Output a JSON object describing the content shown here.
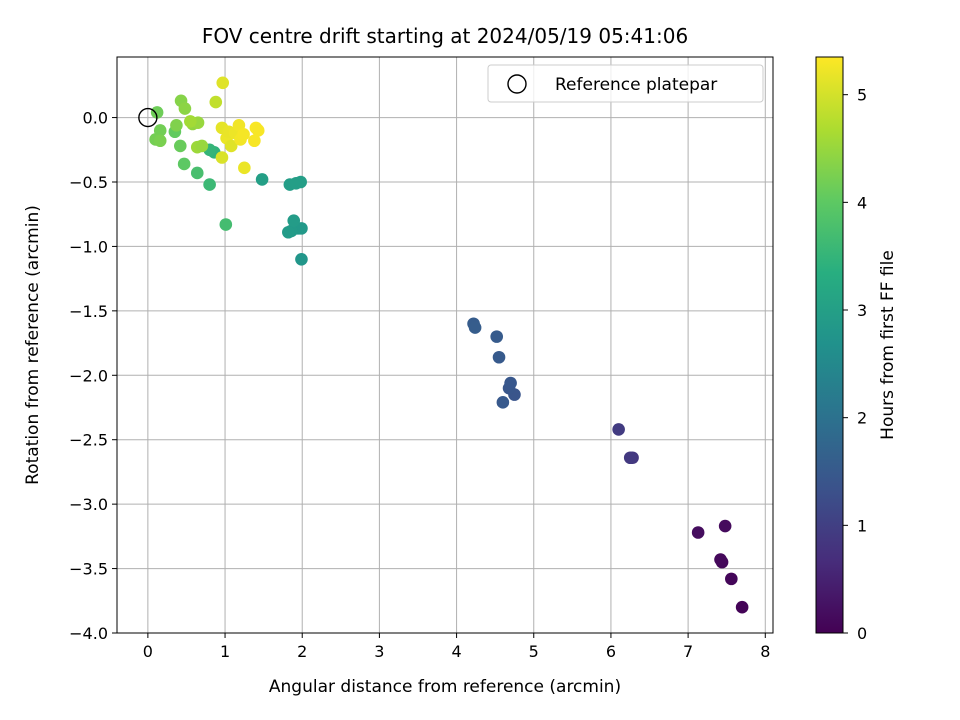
{
  "chart_data": {
    "type": "scatter",
    "title": "FOV centre drift starting at 2024/05/19 05:41:06",
    "xlabel": "Angular distance from reference (arcmin)",
    "ylabel": "Rotation from reference (arcmin)",
    "xlim": [
      -0.4,
      8.1
    ],
    "ylim": [
      -4.0,
      0.47
    ],
    "xticks": [
      0,
      1,
      2,
      3,
      4,
      5,
      6,
      7,
      8
    ],
    "yticks": [
      0.0,
      -0.5,
      -1.0,
      -1.5,
      -2.0,
      -2.5,
      -3.0,
      -3.5,
      -4.0
    ],
    "xtick_labels": [
      "0",
      "1",
      "2",
      "3",
      "4",
      "5",
      "6",
      "7",
      "8"
    ],
    "ytick_labels": [
      "0.0",
      "−0.5",
      "−1.0",
      "−1.5",
      "−2.0",
      "−2.5",
      "−3.0",
      "−3.5",
      "−4.0"
    ],
    "grid": true,
    "legend": {
      "placement": "top-right",
      "entries": [
        "Reference platepar"
      ]
    },
    "reference_point": {
      "x": 0.0,
      "y": 0.0
    },
    "colorbar": {
      "label": "Hours from first FF file",
      "min": 0,
      "max": 5.35,
      "ticks": [
        0,
        1,
        2,
        3,
        4,
        5
      ],
      "tick_labels": [
        "0",
        "1",
        "2",
        "3",
        "4",
        "5"
      ],
      "colormap": "viridis"
    },
    "points": [
      {
        "x": 7.7,
        "y": -3.8,
        "t": 0.05
      },
      {
        "x": 7.56,
        "y": -3.58,
        "t": 0.08
      },
      {
        "x": 7.44,
        "y": -3.45,
        "t": 0.1
      },
      {
        "x": 7.42,
        "y": -3.43,
        "t": 0.12
      },
      {
        "x": 7.48,
        "y": -3.17,
        "t": 0.15
      },
      {
        "x": 7.13,
        "y": -3.22,
        "t": 0.18
      },
      {
        "x": 6.28,
        "y": -2.64,
        "t": 0.85
      },
      {
        "x": 6.25,
        "y": -2.64,
        "t": 0.88
      },
      {
        "x": 6.1,
        "y": -2.42,
        "t": 0.92
      },
      {
        "x": 4.75,
        "y": -2.15,
        "t": 1.4
      },
      {
        "x": 4.68,
        "y": -2.1,
        "t": 1.42
      },
      {
        "x": 4.7,
        "y": -2.06,
        "t": 1.45
      },
      {
        "x": 4.6,
        "y": -2.21,
        "t": 1.48
      },
      {
        "x": 4.55,
        "y": -1.86,
        "t": 1.5
      },
      {
        "x": 4.52,
        "y": -1.7,
        "t": 1.52
      },
      {
        "x": 4.22,
        "y": -1.6,
        "t": 1.55
      },
      {
        "x": 4.24,
        "y": -1.63,
        "t": 1.57
      },
      {
        "x": 1.99,
        "y": -1.1,
        "t": 2.8
      },
      {
        "x": 1.95,
        "y": -0.86,
        "t": 2.85
      },
      {
        "x": 1.99,
        "y": -0.86,
        "t": 2.86
      },
      {
        "x": 1.86,
        "y": -0.88,
        "t": 2.88
      },
      {
        "x": 1.82,
        "y": -0.89,
        "t": 2.9
      },
      {
        "x": 1.89,
        "y": -0.8,
        "t": 2.92
      },
      {
        "x": 1.84,
        "y": -0.52,
        "t": 2.95
      },
      {
        "x": 1.92,
        "y": -0.51,
        "t": 2.97
      },
      {
        "x": 1.98,
        "y": -0.5,
        "t": 2.98
      },
      {
        "x": 1.48,
        "y": -0.48,
        "t": 3.0
      },
      {
        "x": 0.86,
        "y": -0.27,
        "t": 3.45
      },
      {
        "x": 0.8,
        "y": -0.25,
        "t": 3.5
      },
      {
        "x": 0.8,
        "y": -0.52,
        "t": 3.6
      },
      {
        "x": 0.64,
        "y": -0.43,
        "t": 3.75
      },
      {
        "x": 1.01,
        "y": -0.83,
        "t": 3.7
      },
      {
        "x": 0.47,
        "y": -0.36,
        "t": 4.0
      },
      {
        "x": 0.35,
        "y": -0.11,
        "t": 4.05
      },
      {
        "x": 0.42,
        "y": -0.22,
        "t": 4.1
      },
      {
        "x": 0.12,
        "y": 0.04,
        "t": 4.15
      },
      {
        "x": 0.16,
        "y": -0.1,
        "t": 4.18
      },
      {
        "x": 0.1,
        "y": -0.17,
        "t": 4.2
      },
      {
        "x": 0.16,
        "y": -0.18,
        "t": 4.25
      },
      {
        "x": 0.37,
        "y": -0.06,
        "t": 4.3
      },
      {
        "x": 0.43,
        "y": 0.13,
        "t": 4.35
      },
      {
        "x": 0.48,
        "y": 0.07,
        "t": 4.4
      },
      {
        "x": 0.58,
        "y": -0.05,
        "t": 4.45
      },
      {
        "x": 0.65,
        "y": -0.04,
        "t": 4.5
      },
      {
        "x": 0.64,
        "y": -0.23,
        "t": 4.55
      },
      {
        "x": 0.55,
        "y": -0.03,
        "t": 4.6
      },
      {
        "x": 0.7,
        "y": -0.22,
        "t": 4.5
      },
      {
        "x": 0.88,
        "y": 0.12,
        "t": 4.85
      },
      {
        "x": 0.97,
        "y": 0.27,
        "t": 5.1
      },
      {
        "x": 0.96,
        "y": -0.08,
        "t": 5.15
      },
      {
        "x": 0.96,
        "y": -0.31,
        "t": 5.05
      },
      {
        "x": 1.02,
        "y": -0.16,
        "t": 5.2
      },
      {
        "x": 1.05,
        "y": -0.11,
        "t": 5.18
      },
      {
        "x": 1.08,
        "y": -0.22,
        "t": 5.1
      },
      {
        "x": 1.13,
        "y": -0.12,
        "t": 5.22
      },
      {
        "x": 1.18,
        "y": -0.06,
        "t": 5.25
      },
      {
        "x": 1.2,
        "y": -0.17,
        "t": 5.27
      },
      {
        "x": 1.24,
        "y": -0.13,
        "t": 5.28
      },
      {
        "x": 1.25,
        "y": -0.39,
        "t": 5.2
      },
      {
        "x": 1.38,
        "y": -0.18,
        "t": 5.3
      },
      {
        "x": 1.4,
        "y": -0.08,
        "t": 5.32
      },
      {
        "x": 1.43,
        "y": -0.1,
        "t": 5.3
      }
    ]
  }
}
